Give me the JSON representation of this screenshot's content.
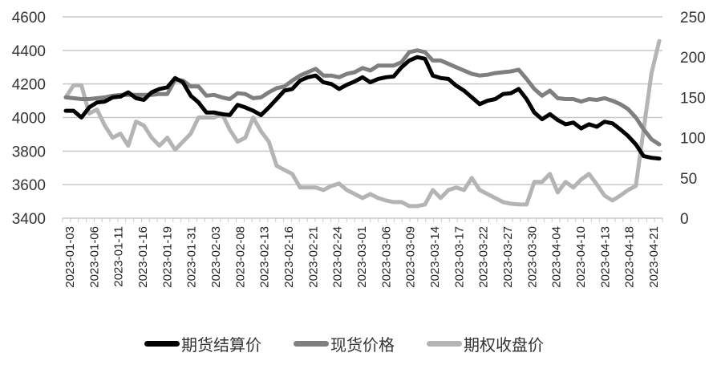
{
  "chart_data": {
    "type": "line",
    "title": "",
    "xlabel": "",
    "ylabel": "",
    "ylim": [
      3400,
      4600
    ],
    "y2lim": [
      0,
      250
    ],
    "yticks": [
      3400,
      3600,
      3800,
      4000,
      4200,
      4400,
      4600
    ],
    "y2ticks": [
      0,
      50,
      100,
      150,
      200,
      250
    ],
    "grid": true,
    "legend_position": "bottom",
    "x_tick_labels": [
      "2023-01-03",
      "2023-01-06",
      "2023-01-11",
      "2023-01-16",
      "2023-01-19",
      "2023-01-31",
      "2023-02-03",
      "2023-02-08",
      "2023-02-13",
      "2023-02-16",
      "2023-02-21",
      "2023-02-24",
      "2023-03-01",
      "2023-03-06",
      "2023-03-09",
      "2023-03-14",
      "2023-03-17",
      "2023-03-22",
      "2023-03-27",
      "2023-03-30",
      "2023-04-04",
      "2023-04-10",
      "2023-04-13",
      "2023-04-18",
      "2023-04-21"
    ],
    "n_points": 77,
    "series": [
      {
        "name": "期货结算价",
        "axis": "left",
        "color": "#000000",
        "values": [
          4040,
          4040,
          4000,
          4060,
          4090,
          4095,
          4120,
          4125,
          4150,
          4115,
          4105,
          4150,
          4170,
          4180,
          4235,
          4210,
          4130,
          4090,
          4030,
          4030,
          4020,
          4015,
          4075,
          4060,
          4040,
          4015,
          4060,
          4110,
          4160,
          4170,
          4220,
          4240,
          4250,
          4210,
          4200,
          4170,
          4195,
          4215,
          4240,
          4210,
          4230,
          4240,
          4245,
          4300,
          4340,
          4360,
          4350,
          4250,
          4235,
          4230,
          4190,
          4160,
          4120,
          4080,
          4100,
          4110,
          4140,
          4145,
          4170,
          4110,
          4030,
          3990,
          4020,
          3985,
          3960,
          3970,
          3935,
          3960,
          3945,
          3975,
          3965,
          3930,
          3890,
          3840,
          3770,
          3760,
          3755
        ],
        "note": "approximate readings; final value ≈3755"
      },
      {
        "name": "现货价格",
        "axis": "left",
        "color": "#7f7f7f",
        "values": [
          4120,
          4115,
          4110,
          4110,
          4115,
          4120,
          4130,
          4135,
          4135,
          4135,
          4135,
          4135,
          4140,
          4140,
          4225,
          4220,
          4185,
          4185,
          4130,
          4135,
          4120,
          4110,
          4145,
          4140,
          4115,
          4120,
          4150,
          4175,
          4185,
          4220,
          4250,
          4270,
          4290,
          4250,
          4250,
          4240,
          4260,
          4270,
          4295,
          4280,
          4310,
          4310,
          4310,
          4330,
          4390,
          4400,
          4390,
          4340,
          4340,
          4320,
          4300,
          4280,
          4260,
          4250,
          4255,
          4265,
          4270,
          4275,
          4285,
          4230,
          4170,
          4130,
          4160,
          4115,
          4110,
          4110,
          4095,
          4110,
          4105,
          4115,
          4100,
          4080,
          4050,
          4000,
          3930,
          3870,
          3840
        ],
        "note": "approximate readings; final value ≈3840"
      },
      {
        "name": "期权收盘价",
        "axis": "right",
        "color": "#b4b4b4",
        "values": [
          150,
          165,
          165,
          130,
          135,
          115,
          100,
          105,
          90,
          120,
          115,
          100,
          90,
          100,
          85,
          95,
          105,
          125,
          125,
          125,
          130,
          110,
          95,
          100,
          125,
          108,
          95,
          65,
          60,
          55,
          38,
          38,
          38,
          35,
          40,
          43,
          35,
          30,
          25,
          30,
          25,
          22,
          20,
          20,
          15,
          15,
          17,
          35,
          25,
          35,
          38,
          35,
          50,
          35,
          30,
          25,
          20,
          18,
          17,
          17,
          45,
          45,
          55,
          32,
          45,
          38,
          48,
          55,
          42,
          28,
          22,
          28,
          35,
          40,
          110,
          180,
          220
        ],
        "note": "approximate readings; spikes to ≈220 on last point"
      }
    ]
  },
  "legend": [
    {
      "label": "期货结算价",
      "color": "#000000"
    },
    {
      "label": "现货价格",
      "color": "#7f7f7f"
    },
    {
      "label": "期权收盘价",
      "color": "#b4b4b4"
    }
  ]
}
